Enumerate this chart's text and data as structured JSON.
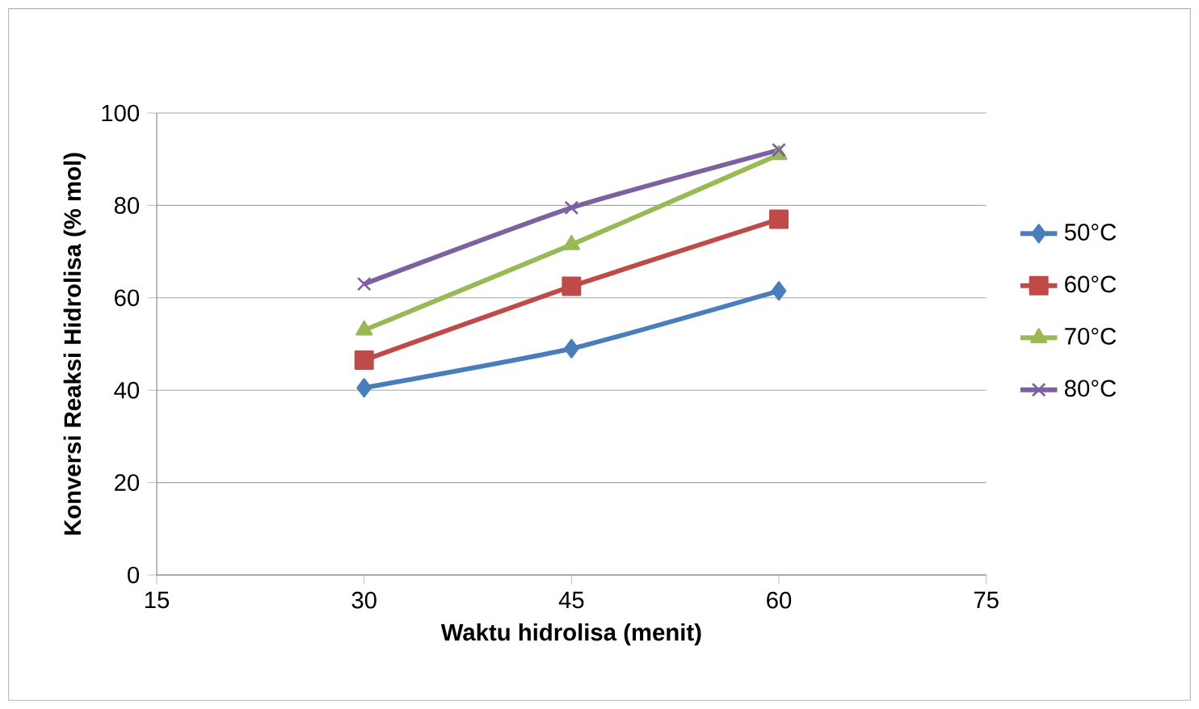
{
  "chart_data": {
    "type": "line",
    "xlabel": "Waktu hidrolisa (menit)",
    "ylabel": "Konversi Reaksi Hidrolisa (% mol)",
    "x": [
      30,
      45,
      60
    ],
    "series": [
      {
        "name": "50°C",
        "color": "#4a7ebb",
        "marker": "diamond",
        "values": [
          40.5,
          49,
          61.5
        ]
      },
      {
        "name": "60°C",
        "color": "#be4b48",
        "marker": "square",
        "values": [
          46.5,
          62.5,
          77
        ]
      },
      {
        "name": "70°C",
        "color": "#98b954",
        "marker": "triangle",
        "values": [
          53,
          71.5,
          91
        ]
      },
      {
        "name": "80°C",
        "color": "#7d60a0",
        "marker": "cross",
        "values": [
          63,
          79.5,
          92
        ]
      }
    ],
    "xlim": [
      15,
      75
    ],
    "xticks": [
      15,
      30,
      45,
      60,
      75
    ],
    "ylim": [
      0,
      100
    ],
    "yticks": [
      0,
      20,
      40,
      60,
      80,
      100
    ],
    "grid": "y",
    "legend": "right",
    "line_style": "solid"
  }
}
